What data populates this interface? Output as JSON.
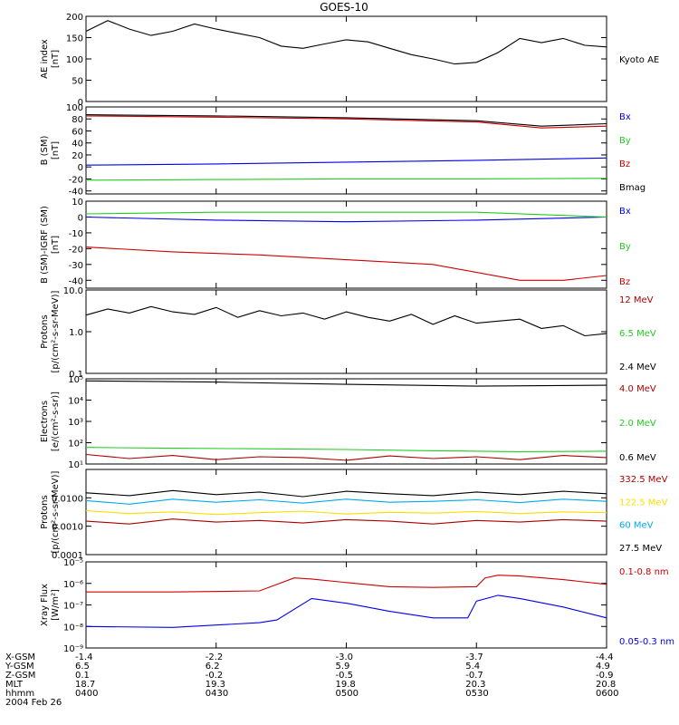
{
  "title": "GOES-10",
  "date_label": "2004 Feb 26",
  "colors": {
    "black": "#000000",
    "red": "#cc0000",
    "green": "#22cc22",
    "blue": "#0000ee",
    "yellow": "#ffdd00",
    "cyan": "#00aaee",
    "darkred": "#aa0000"
  },
  "chart_data": [
    {
      "type": "line",
      "ylabel": [
        "AE index",
        "[nT]"
      ],
      "ylim": [
        0,
        200
      ],
      "scale": "linear",
      "yticks": [
        0,
        50,
        100,
        150,
        200
      ],
      "ytick_labels": [
        "0",
        "50",
        "100",
        "150",
        "200"
      ],
      "series": [
        {
          "name": "Kyoto AE",
          "color": "#000000",
          "x": [
            0,
            5,
            10,
            15,
            20,
            25,
            30,
            35,
            40,
            45,
            50,
            55,
            60,
            65,
            70,
            75,
            80,
            85,
            90,
            95,
            100,
            105,
            110,
            115,
            120
          ],
          "y": [
            165,
            190,
            170,
            155,
            165,
            182,
            170,
            160,
            150,
            130,
            125,
            135,
            145,
            140,
            125,
            110,
            100,
            88,
            92,
            115,
            148,
            138,
            148,
            132,
            128
          ]
        }
      ]
    },
    {
      "type": "line",
      "ylabel": [
        "B (SM)",
        "[nT]"
      ],
      "ylim": [
        -45,
        100
      ],
      "scale": "linear",
      "yticks": [
        -40,
        -20,
        0,
        20,
        40,
        60,
        80,
        100
      ],
      "ytick_labels": [
        "-40",
        "-20",
        "0",
        "20",
        "40",
        "60",
        "80",
        "100"
      ],
      "series": [
        {
          "name": "Bx",
          "color": "#0000ee",
          "x": [
            0,
            30,
            60,
            90,
            120
          ],
          "y": [
            3,
            5,
            8,
            11,
            15
          ]
        },
        {
          "name": "By",
          "color": "#22cc22",
          "x": [
            0,
            30,
            60,
            90,
            120
          ],
          "y": [
            -22,
            -21,
            -20,
            -20,
            -19
          ]
        },
        {
          "name": "Bz",
          "color": "#cc0000",
          "x": [
            0,
            30,
            60,
            90,
            105,
            120
          ],
          "y": [
            85,
            83,
            80,
            75,
            65,
            68
          ]
        },
        {
          "name": "Bmag",
          "color": "#000000",
          "x": [
            0,
            30,
            60,
            90,
            105,
            120
          ],
          "y": [
            87,
            85,
            82,
            77,
            68,
            72
          ]
        }
      ]
    },
    {
      "type": "line",
      "ylabel": [
        "B (SM)-IGRF (SM)",
        "[nT]"
      ],
      "ylim": [
        -45,
        10
      ],
      "scale": "linear",
      "yticks": [
        -40,
        -30,
        -20,
        -10,
        0,
        10
      ],
      "ytick_labels": [
        "-40",
        "-30",
        "-20",
        "-10",
        "0",
        "10"
      ],
      "series": [
        {
          "name": "Bx",
          "color": "#0000ee",
          "x": [
            0,
            30,
            60,
            90,
            120
          ],
          "y": [
            0,
            -2,
            -3,
            -2,
            0
          ]
        },
        {
          "name": "By",
          "color": "#22cc22",
          "x": [
            0,
            30,
            60,
            90,
            110,
            120
          ],
          "y": [
            2,
            3,
            3,
            3,
            1,
            0
          ]
        },
        {
          "name": "Bz",
          "color": "#cc0000",
          "x": [
            0,
            20,
            40,
            60,
            80,
            100,
            110,
            120
          ],
          "y": [
            -19,
            -22,
            -24,
            -27,
            -30,
            -40,
            -40,
            -37
          ]
        }
      ]
    },
    {
      "type": "line",
      "ylabel": [
        "Protons",
        "[p/(cm²-s-sr-MeV)]"
      ],
      "ylim": [
        0.1,
        10
      ],
      "scale": "log",
      "yticks": [
        0.1,
        1,
        10
      ],
      "ytick_labels": [
        "0.1",
        "1.0",
        "10.0"
      ],
      "series": [
        {
          "name": "12 MeV",
          "color": "#aa0000",
          "x": [],
          "y": []
        },
        {
          "name": "6.5 MeV",
          "color": "#22cc22",
          "x": [],
          "y": []
        },
        {
          "name": "2.4 MeV",
          "color": "#000000",
          "x": [
            0,
            5,
            10,
            15,
            20,
            25,
            30,
            35,
            40,
            45,
            50,
            55,
            60,
            65,
            70,
            75,
            80,
            85,
            90,
            95,
            100,
            105,
            110,
            115,
            120
          ],
          "y": [
            2.5,
            3.5,
            2.8,
            4,
            3,
            2.6,
            3.8,
            2.2,
            3.2,
            2.4,
            2.8,
            2.0,
            3.0,
            2.2,
            1.8,
            2.6,
            1.5,
            2.4,
            1.6,
            1.8,
            2.0,
            1.2,
            1.4,
            0.8,
            0.9
          ]
        }
      ]
    },
    {
      "type": "line",
      "ylabel": [
        "Electrons",
        "[e/(cm²-s-sr)]"
      ],
      "ylim": [
        10,
        100000
      ],
      "scale": "log",
      "yticks": [
        10,
        100,
        1000,
        10000,
        100000
      ],
      "ytick_labels": [
        "10¹",
        "10²",
        "10³",
        "10⁴",
        "10⁵"
      ],
      "series": [
        {
          "name": "4.0 MeV",
          "color": "#aa0000",
          "x": [
            0,
            10,
            20,
            30,
            40,
            50,
            60,
            70,
            80,
            90,
            100,
            110,
            120
          ],
          "y": [
            28,
            18,
            25,
            16,
            22,
            20,
            15,
            24,
            18,
            22,
            16,
            25,
            20
          ]
        },
        {
          "name": "2.0 MeV",
          "color": "#22cc22",
          "x": [
            0,
            20,
            40,
            60,
            80,
            100,
            120
          ],
          "y": [
            60,
            55,
            52,
            48,
            42,
            38,
            40
          ]
        },
        {
          "name": "0.6 MeV",
          "color": "#000000",
          "x": [
            0,
            30,
            60,
            90,
            120
          ],
          "y": [
            80000,
            70000,
            55000,
            45000,
            50000
          ]
        }
      ]
    },
    {
      "type": "line",
      "ylabel": [
        "Protons",
        "[p/(cm²-s-sr-MeV)]"
      ],
      "ylim": [
        0.0001,
        0.1
      ],
      "scale": "log",
      "yticks": [
        0.0001,
        0.001,
        0.01
      ],
      "ytick_labels": [
        "0.0001",
        "0.0010",
        "0.0100"
      ],
      "series": [
        {
          "name": "332.5 MeV",
          "color": "#aa0000",
          "x": [
            0,
            10,
            20,
            30,
            40,
            50,
            60,
            70,
            80,
            90,
            100,
            110,
            120
          ],
          "y": [
            0.0015,
            0.0012,
            0.0018,
            0.0014,
            0.0016,
            0.0013,
            0.0017,
            0.0015,
            0.0012,
            0.0016,
            0.0014,
            0.0017,
            0.0015
          ]
        },
        {
          "name": "122.5 MeV",
          "color": "#ffdd00",
          "x": [
            0,
            10,
            20,
            30,
            40,
            50,
            60,
            70,
            80,
            90,
            100,
            110,
            120
          ],
          "y": [
            0.0035,
            0.0028,
            0.0032,
            0.0026,
            0.003,
            0.0034,
            0.0027,
            0.0031,
            0.0029,
            0.0033,
            0.0028,
            0.0032,
            0.003
          ]
        },
        {
          "name": "60 MeV",
          "color": "#00aaee",
          "x": [
            0,
            10,
            20,
            30,
            40,
            50,
            60,
            70,
            80,
            90,
            100,
            110,
            120
          ],
          "y": [
            0.008,
            0.006,
            0.009,
            0.007,
            0.0085,
            0.0065,
            0.009,
            0.007,
            0.0075,
            0.0085,
            0.0068,
            0.009,
            0.0075
          ]
        },
        {
          "name": "27.5 MeV",
          "color": "#000000",
          "x": [
            0,
            10,
            20,
            30,
            40,
            50,
            60,
            70,
            80,
            90,
            100,
            110,
            120
          ],
          "y": [
            0.015,
            0.012,
            0.018,
            0.013,
            0.016,
            0.011,
            0.017,
            0.014,
            0.012,
            0.016,
            0.013,
            0.017,
            0.014
          ]
        }
      ]
    },
    {
      "type": "line",
      "ylabel": [
        "Xray Flux",
        "[W/m²]"
      ],
      "ylim": [
        1e-09,
        1e-05
      ],
      "scale": "log",
      "yticks": [
        1e-09,
        1e-08,
        1e-07,
        1e-06,
        1e-05
      ],
      "ytick_labels": [
        "10⁻⁹",
        "10⁻⁸",
        "10⁻⁷",
        "10⁻⁶",
        "10⁻⁵"
      ],
      "series": [
        {
          "name": "0.1-0.8 nm",
          "color": "#cc0000",
          "x": [
            0,
            20,
            40,
            48,
            52,
            60,
            70,
            80,
            90,
            92,
            95,
            100,
            110,
            120
          ],
          "y": [
            4e-07,
            4e-07,
            4.5e-07,
            1.8e-06,
            1.6e-06,
            1.1e-06,
            7e-07,
            6.5e-07,
            7e-07,
            1.8e-06,
            2.4e-06,
            2.2e-06,
            1.5e-06,
            9e-07
          ]
        },
        {
          "name": "0.05-0.3 nm",
          "color": "#0000ee",
          "x": [
            0,
            20,
            40,
            44,
            52,
            60,
            70,
            80,
            88,
            90,
            95,
            100,
            110,
            120
          ],
          "y": [
            1e-08,
            9e-09,
            1.5e-08,
            2e-08,
            2e-07,
            1.2e-07,
            5e-08,
            2.5e-08,
            2.5e-08,
            1.5e-07,
            2.8e-07,
            2e-07,
            8e-08,
            2.5e-08
          ]
        }
      ]
    }
  ],
  "xaxis": {
    "rows": [
      "X-GSM",
      "Y-GSM",
      "Z-GSM",
      "MLT",
      "hhmm"
    ],
    "ticks": [
      {
        "x": 0,
        "vals": [
          "-1.4",
          "6.5",
          "0.1",
          "18.7",
          "0400"
        ]
      },
      {
        "x": 30,
        "vals": [
          "-2.2",
          "6.2",
          "-0.2",
          "19.3",
          "0430"
        ]
      },
      {
        "x": 60,
        "vals": [
          "-3.0",
          "5.9",
          "-0.5",
          "19.8",
          "0500"
        ]
      },
      {
        "x": 90,
        "vals": [
          "-3.7",
          "5.4",
          "-0.7",
          "20.3",
          "0530"
        ]
      },
      {
        "x": 120,
        "vals": [
          "-4.4",
          "4.9",
          "-0.9",
          "20.8",
          "0600"
        ]
      }
    ]
  }
}
